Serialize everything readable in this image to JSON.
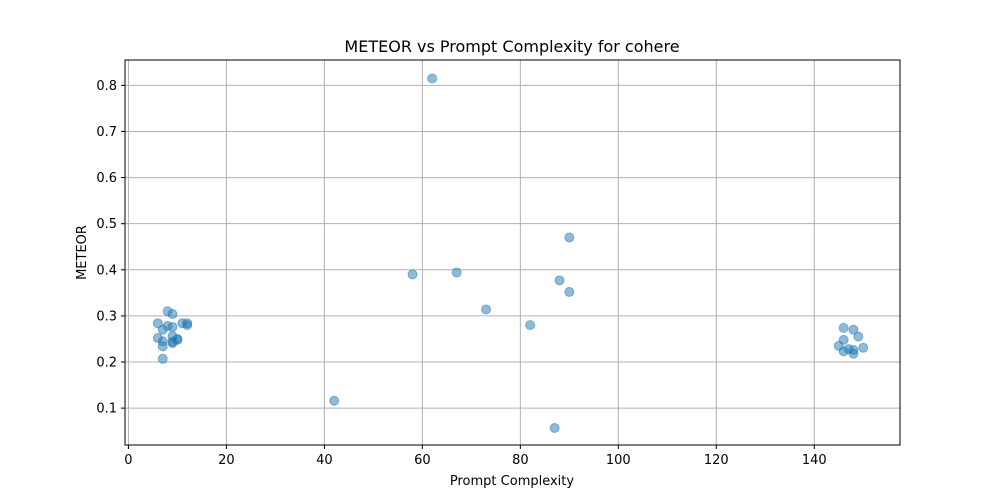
{
  "chart_data": {
    "type": "scatter",
    "title": "METEOR vs Prompt Complexity for cohere",
    "xlabel": "Prompt Complexity",
    "ylabel": "METEOR",
    "xlim": [
      -0.7,
      157.5
    ],
    "ylim": [
      0.02,
      0.855
    ],
    "xticks": [
      0,
      20,
      40,
      60,
      80,
      100,
      120,
      140
    ],
    "yticks": [
      0.1,
      0.2,
      0.3,
      0.4,
      0.5,
      0.6,
      0.7,
      0.8
    ],
    "grid": true,
    "marker_color": "#1f77b4",
    "marker_alpha": 0.5,
    "points": [
      {
        "x": 6,
        "y": 0.284
      },
      {
        "x": 6,
        "y": 0.252
      },
      {
        "x": 7,
        "y": 0.27
      },
      {
        "x": 7,
        "y": 0.245
      },
      {
        "x": 7,
        "y": 0.234
      },
      {
        "x": 7,
        "y": 0.207
      },
      {
        "x": 8,
        "y": 0.31
      },
      {
        "x": 8,
        "y": 0.278
      },
      {
        "x": 9,
        "y": 0.304
      },
      {
        "x": 9,
        "y": 0.276
      },
      {
        "x": 9,
        "y": 0.256
      },
      {
        "x": 9,
        "y": 0.244
      },
      {
        "x": 9,
        "y": 0.241
      },
      {
        "x": 10,
        "y": 0.25
      },
      {
        "x": 10,
        "y": 0.248
      },
      {
        "x": 11,
        "y": 0.284
      },
      {
        "x": 12,
        "y": 0.284
      },
      {
        "x": 12,
        "y": 0.28
      },
      {
        "x": 42,
        "y": 0.116
      },
      {
        "x": 58,
        "y": 0.39
      },
      {
        "x": 62,
        "y": 0.815
      },
      {
        "x": 67,
        "y": 0.394
      },
      {
        "x": 73,
        "y": 0.314
      },
      {
        "x": 82,
        "y": 0.28
      },
      {
        "x": 87,
        "y": 0.057
      },
      {
        "x": 88,
        "y": 0.377
      },
      {
        "x": 90,
        "y": 0.47
      },
      {
        "x": 90,
        "y": 0.352
      },
      {
        "x": 145,
        "y": 0.235
      },
      {
        "x": 146,
        "y": 0.274
      },
      {
        "x": 146,
        "y": 0.248
      },
      {
        "x": 146,
        "y": 0.223
      },
      {
        "x": 147,
        "y": 0.228
      },
      {
        "x": 148,
        "y": 0.27
      },
      {
        "x": 148,
        "y": 0.226
      },
      {
        "x": 148,
        "y": 0.218
      },
      {
        "x": 149,
        "y": 0.255
      },
      {
        "x": 150,
        "y": 0.231
      }
    ]
  }
}
